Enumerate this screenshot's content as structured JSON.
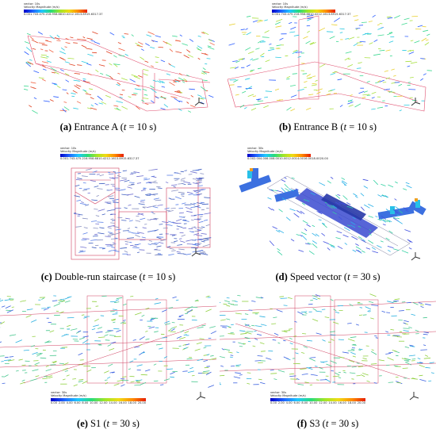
{
  "legend_title": "Velocity Magnitude (m/s)",
  "legend_small": {
    "vector_label": "vector: 10s",
    "ticks": [
      "0.00",
      "1.74",
      "3.47",
      "5.21",
      "6.95",
      "8.68",
      "10.42",
      "12.16",
      "13.89",
      "15.63",
      "17.37"
    ]
  },
  "legend_large": {
    "vector_label": "vector: 30s",
    "ticks": [
      "0.00",
      "2.00",
      "4.00",
      "6.00",
      "8.00",
      "10.00",
      "12.00",
      "14.00",
      "16.00",
      "18.00",
      "20.00"
    ]
  },
  "gradient": [
    "#0000c8",
    "#1e64ff",
    "#1ec8ff",
    "#28dc78",
    "#a0e628",
    "#f0dc14",
    "#ff8c00",
    "#e61e00"
  ],
  "panels": [
    {
      "id": "a",
      "letter": "(a)",
      "name": "Entrance A",
      "time": "t",
      "value": "= 10 s)"
    },
    {
      "id": "b",
      "letter": "(b)",
      "name": "Entrance B",
      "time": "t",
      "value": "= 10 s)"
    },
    {
      "id": "c",
      "letter": "(c)",
      "name": "Double-run staircase",
      "time": "t",
      "value": "= 10 s)"
    },
    {
      "id": "d",
      "letter": "(d)",
      "name": "Speed vector",
      "time": "t",
      "value": "= 30 s)"
    },
    {
      "id": "e",
      "letter": "(e)",
      "name": "S1",
      "time": "t",
      "value": "= 30 s)"
    },
    {
      "id": "f",
      "letter": "(f)",
      "name": "S3",
      "time": "t",
      "value": "= 30 s)"
    }
  ]
}
